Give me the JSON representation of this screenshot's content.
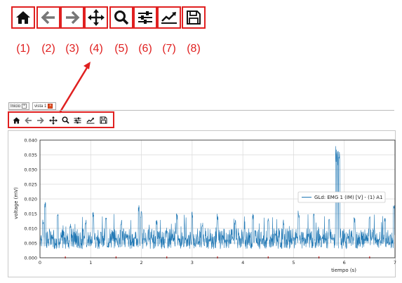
{
  "toolbar": {
    "buttons": [
      {
        "icon": "home-icon",
        "number": "(1)"
      },
      {
        "icon": "back-arrow-icon",
        "number": "(2)"
      },
      {
        "icon": "forward-arrow-icon",
        "number": "(3)"
      },
      {
        "icon": "pan-move-icon",
        "number": "(4)"
      },
      {
        "icon": "zoom-magnifier-icon",
        "number": "(5)"
      },
      {
        "icon": "configure-subplots-icon",
        "number": "(6)"
      },
      {
        "icon": "edit-axis-curve-icon",
        "number": "(7)"
      },
      {
        "icon": "save-floppy-icon",
        "number": "(8)"
      }
    ]
  },
  "tabs": [
    {
      "label": "Inicio"
    },
    {
      "label": "vista 1"
    }
  ],
  "colors": {
    "accent_red": "#e02020",
    "series_blue": "#1f77b4"
  },
  "chart_data": {
    "type": "line",
    "xlabel": "tiempo (s)",
    "ylabel": "voltage (mV)",
    "xlim": [
      0,
      7
    ],
    "ylim": [
      0,
      0.04
    ],
    "x_ticks": [
      "0",
      "1",
      "2",
      "3",
      "4",
      "5",
      "6",
      "7"
    ],
    "y_ticks": [
      "0.000",
      "0.005",
      "0.010",
      "0.015",
      "0.020",
      "0.025",
      "0.030",
      "0.035",
      "0.040"
    ],
    "grid": true,
    "legend_position": "center-right",
    "series": [
      {
        "name": "GLd: EMG 1 (IM) [V] - (1) A1",
        "color": "#1f77b4",
        "baseline": 0.006,
        "x": [
          0.06,
          0.1,
          0.35,
          0.6,
          0.9,
          1.05,
          1.3,
          1.6,
          1.95,
          2.0,
          2.3,
          2.7,
          3.0,
          3.2,
          3.5,
          3.85,
          4.2,
          4.5,
          4.8,
          5.1,
          5.4,
          5.7,
          5.84,
          5.87,
          5.9,
          6.2,
          6.5,
          6.8,
          6.98
        ],
        "y": [
          0.013,
          0.019,
          0.015,
          0.012,
          0.013,
          0.016,
          0.014,
          0.013,
          0.018,
          0.016,
          0.013,
          0.015,
          0.016,
          0.012,
          0.015,
          0.013,
          0.015,
          0.014,
          0.013,
          0.016,
          0.015,
          0.014,
          0.038,
          0.037,
          0.038,
          0.014,
          0.015,
          0.014,
          0.018
        ]
      }
    ]
  }
}
